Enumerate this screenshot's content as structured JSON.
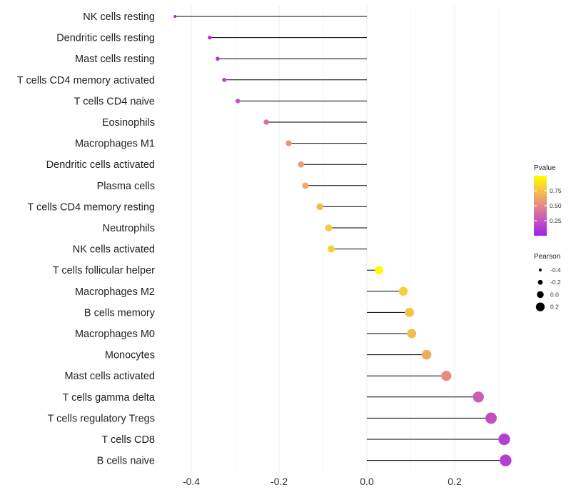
{
  "chart_data": {
    "type": "lollipop",
    "title": "",
    "xlabel": "",
    "ylabel": "",
    "xlim": [
      -0.44,
      0.32
    ],
    "xticks": [
      -0.4,
      -0.2,
      0.0,
      0.2
    ],
    "xtick_labels": [
      "-0.4",
      "-0.2",
      "0.0",
      "0.2"
    ],
    "grid": true,
    "categories": [
      "NK cells resting",
      "Dendritic cells resting",
      "Mast cells resting",
      "T cells CD4 memory activated",
      "T cells CD4 naive",
      "Eosinophils",
      "Macrophages M1",
      "Dendritic cells activated",
      "Plasma cells",
      "T cells CD4 memory resting",
      "Neutrophils",
      "NK cells activated",
      "T cells follicular helper",
      "Macrophages M2",
      "B cells memory",
      "Macrophages M0",
      "Monocytes",
      "Mast cells activated",
      "T cells gamma delta",
      "T cells regulatory  Tregs ",
      "T cells CD8",
      "B cells naive"
    ],
    "pearson": [
      -0.437,
      -0.358,
      -0.34,
      -0.325,
      -0.294,
      -0.229,
      -0.178,
      -0.15,
      -0.14,
      -0.107,
      -0.087,
      -0.081,
      0.028,
      0.083,
      0.097,
      0.102,
      0.136,
      0.181,
      0.254,
      0.283,
      0.313,
      0.316
    ],
    "pvalue": [
      0.05,
      0.08,
      0.12,
      0.18,
      0.25,
      0.4,
      0.55,
      0.6,
      0.65,
      0.72,
      0.78,
      0.8,
      0.98,
      0.8,
      0.75,
      0.72,
      0.65,
      0.52,
      0.3,
      0.22,
      0.15,
      0.14
    ],
    "legend_position": "right",
    "color_legend": {
      "title": "Pvalue",
      "ticks": [
        0.75,
        0.5,
        0.25
      ],
      "tick_labels": [
        "0.75",
        "0.50",
        "0.25"
      ],
      "range": [
        0.0,
        1.0
      ],
      "low_color": "#a020f0",
      "mid_color": "#e8868a",
      "high_color": "#ffff00"
    },
    "size_legend": {
      "title": "Pearson",
      "values": [
        -0.4,
        -0.2,
        0.0,
        0.2
      ],
      "labels": [
        "-0.4",
        "-0.2",
        "0.0",
        "0.2"
      ]
    }
  }
}
